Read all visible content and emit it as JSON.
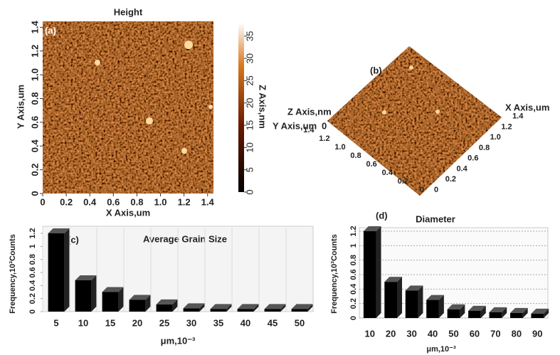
{
  "chart_data": [
    {
      "type": "image",
      "panel": "(a)",
      "title": "Height",
      "xlabel": "X Axis,um",
      "ylabel": "Y Axis,um",
      "zlabel": "Z Axis,nm",
      "xlim": [
        0,
        1.45
      ],
      "xticks": [
        0,
        0.2,
        0.4,
        0.6,
        0.8,
        {
          "value": 1,
          "label": "1.0"
        },
        1.2,
        1.4
      ],
      "ylim": [
        0,
        1.45
      ],
      "yticks": [
        0,
        0.2,
        0.4,
        0.6,
        0.8,
        {
          "value": 1,
          "label": "1.0"
        },
        1.2,
        1.4
      ],
      "zlim": [
        0,
        38
      ],
      "zticks": [
        0,
        5,
        10,
        15,
        20,
        25,
        30,
        35
      ]
    },
    {
      "type": "image3d",
      "panel": "(b)",
      "xlabel": "X Axis,um",
      "ylabel": "Y Axis,um",
      "zlabel": "Z Axis,nm",
      "xlim": [
        0,
        1.45
      ],
      "xticks": [
        0,
        0.2,
        0.4,
        0.6,
        0.8,
        {
          "value": 1,
          "label": "1.0"
        },
        1.2,
        1.4
      ],
      "ylim": [
        0,
        1.45
      ],
      "yticks": [
        0,
        0.2,
        0.4,
        0.6,
        0.8,
        {
          "value": 1,
          "label": "1.0"
        },
        1.2,
        1.4
      ],
      "zticks": [
        0
      ]
    },
    {
      "type": "bar3d",
      "panel": "(c)",
      "title": "Average Grain Size",
      "xlabel": "μm,10⁻³",
      "ylabel": "Frequency,10³Counts",
      "categories": [
        "5",
        "10",
        "15",
        "20",
        "25",
        "30",
        "35",
        "40",
        "45",
        "50"
      ],
      "values": [
        1.2,
        0.48,
        0.3,
        0.18,
        0.11,
        0.05,
        0.04,
        0.04,
        0.04,
        0.04
      ],
      "color": "#000000",
      "ylim": [
        0,
        1.2
      ],
      "yticks": [
        0,
        0.2,
        0.4,
        0.6,
        0.8,
        1,
        1.2
      ],
      "grid": "vertical"
    },
    {
      "type": "bar3d",
      "panel": "(d)",
      "title": "Diameter",
      "xlabel": "μm,10⁻³",
      "ylabel": "Frequency,10³Counts",
      "categories": [
        "10",
        "20",
        "30",
        "40",
        "50",
        "60",
        "70",
        "80",
        "90"
      ],
      "values": [
        1.2,
        0.5,
        0.38,
        0.25,
        0.12,
        0.1,
        0.08,
        0.07,
        0.06
      ],
      "color": "#000000",
      "ylim": [
        0,
        1.2
      ],
      "yticks": [
        0,
        0.2,
        0.4,
        0.6,
        0.8,
        1,
        1.2
      ],
      "grid": "dotted"
    }
  ]
}
